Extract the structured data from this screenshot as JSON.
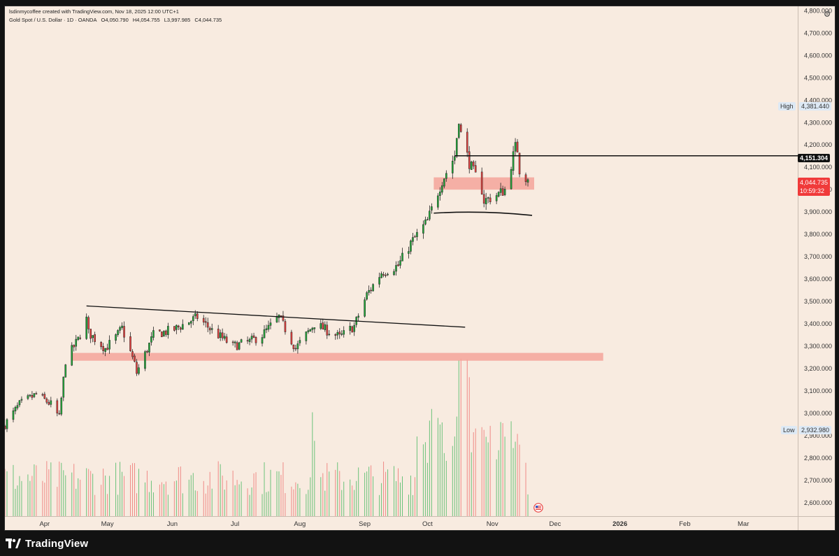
{
  "header": {
    "author_line": "lsdinmycoffee created with TradingView.com, Nov 18, 2025 12:00 UTC+1",
    "symbol_line": "Gold Spot / U.S. Dollar · 1D · OANDA",
    "open": "O4,050.790",
    "high": "H4,054.755",
    "low": "L3,997.985",
    "close": "C4,044.735"
  },
  "footer": {
    "brand": "TradingView"
  },
  "colors": {
    "background": "#f8ebe0",
    "up": "#22ab3a",
    "down": "#e8413f",
    "zone": "#f4a49a",
    "line": "#111111",
    "current_price_tag": "#f03a3a"
  },
  "icons": {
    "settings": "gear-icon",
    "brand": "tradingview-logo-icon",
    "calendar_event": "us-flag-icon"
  },
  "axis": {
    "price_ticks": [
      "4,800.000",
      "4,700.000",
      "4,600.000",
      "4,500.000",
      "4,400.000",
      "4,300.000",
      "4,200.000",
      "4,100.000",
      "4,000.000",
      "3,900.000",
      "3,800.000",
      "3,700.000",
      "3,600.000",
      "3,500.000",
      "3,400.000",
      "3,300.000",
      "3,200.000",
      "3,100.000",
      "3,000.000",
      "2,900.000",
      "2,800.000",
      "2,700.000",
      "2,600.000"
    ],
    "time_ticks": [
      "Apr",
      "May",
      "Jun",
      "Jul",
      "Aug",
      "Sep",
      "Oct",
      "Nov",
      "Dec",
      "2026",
      "Feb",
      "Mar"
    ]
  },
  "tags": {
    "high_label": "High",
    "high_value": "4,381.440",
    "low_label": "Low",
    "low_value": "2,932.980",
    "level_value": "4,151.304",
    "current_value": "4,044.735",
    "countdown": "10:59:32"
  },
  "chart_data": {
    "type": "candlestick",
    "instrument": "Gold Spot / U.S. Dollar",
    "interval": "1D",
    "ylim": [
      2540,
      4820
    ],
    "x_range": [
      "2025-03-13",
      "2026-03-27"
    ],
    "anchors": [
      [
        "2025-03-13",
        2950
      ],
      [
        "2025-03-20",
        3040
      ],
      [
        "2025-03-28",
        3085
      ],
      [
        "2025-04-04",
        3040
      ],
      [
        "2025-04-08",
        2980
      ],
      [
        "2025-04-11",
        3235
      ],
      [
        "2025-04-17",
        3330
      ],
      [
        "2025-04-21",
        3420
      ],
      [
        "2025-04-22",
        3360
      ],
      [
        "2025-04-30",
        3290
      ],
      [
        "2025-05-05",
        3340
      ],
      [
        "2025-05-08",
        3380
      ],
      [
        "2025-05-14",
        3220
      ],
      [
        "2025-05-15",
        3180
      ],
      [
        "2025-05-23",
        3350
      ],
      [
        "2025-06-02",
        3375
      ],
      [
        "2025-06-13",
        3430
      ],
      [
        "2025-06-20",
        3370
      ],
      [
        "2025-06-30",
        3300
      ],
      [
        "2025-07-08",
        3320
      ],
      [
        "2025-07-14",
        3350
      ],
      [
        "2025-07-22",
        3430
      ],
      [
        "2025-07-30",
        3290
      ],
      [
        "2025-08-08",
        3400
      ],
      [
        "2025-08-20",
        3340
      ],
      [
        "2025-08-27",
        3390
      ],
      [
        "2025-09-02",
        3530
      ],
      [
        "2025-09-09",
        3630
      ],
      [
        "2025-09-17",
        3660
      ],
      [
        "2025-09-23",
        3760
      ],
      [
        "2025-10-01",
        3860
      ],
      [
        "2025-10-08",
        4040
      ],
      [
        "2025-10-14",
        4150
      ],
      [
        "2025-10-16",
        4320
      ],
      [
        "2025-10-17",
        4250
      ],
      [
        "2025-10-21",
        4120
      ],
      [
        "2025-10-27",
        4000
      ],
      [
        "2025-10-28",
        3950
      ],
      [
        "2025-11-04",
        3980
      ],
      [
        "2025-11-07",
        4000
      ],
      [
        "2025-11-12",
        4190
      ],
      [
        "2025-11-13",
        4180
      ],
      [
        "2025-11-14",
        4090
      ],
      [
        "2025-11-18",
        4044.735
      ]
    ],
    "current_price": 4044.735,
    "high": 4381.44,
    "low": 2932.98,
    "horizontal_level": 4151.304,
    "volume_peaks": [
      [
        "2025-08-08",
        "high"
      ],
      [
        "2025-10-16",
        "high"
      ],
      [
        "2025-10-20",
        "high"
      ]
    ],
    "annotations": [
      {
        "kind": "trendline",
        "from": [
          "2025-04-21",
          3480
        ],
        "to": [
          "2025-10-19",
          3385
        ]
      },
      {
        "kind": "zone",
        "from": "2025-04-14",
        "to": "2025-12-24",
        "low": 3235,
        "high": 3270
      },
      {
        "kind": "zone",
        "from": "2025-10-04",
        "to": "2025-11-21",
        "low": 4000,
        "high": 4055
      },
      {
        "kind": "curve",
        "from": [
          "2025-10-04",
          3895
        ],
        "to": [
          "2025-11-20",
          3885
        ]
      },
      {
        "kind": "horizontal_ray",
        "from": "2025-10-14",
        "value": 4151.304
      }
    ]
  }
}
